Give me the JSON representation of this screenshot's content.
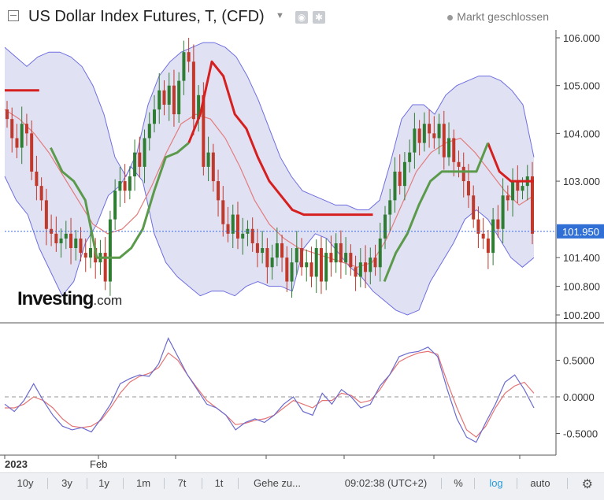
{
  "header": {
    "title": "US Dollar Index Futures, T, (CFD)",
    "market_status": "Markt geschlossen",
    "logo_main": "Investing",
    "logo_suffix": ".com"
  },
  "colors": {
    "bull": "#2f7d32",
    "bear": "#c0392b",
    "band_fill": "#dcdcf2",
    "band_line": "#6e6ee0",
    "supertrend_bear": "#d61f1f",
    "supertrend_bull": "#5a9a4a",
    "ma": "#e37d7d",
    "price_line": "#3a6fe0",
    "osc_fast": "#6a6acf",
    "osc_slow": "#e57373"
  },
  "toolbar": {
    "buttons": [
      "10y",
      "3y",
      "1y",
      "1m",
      "7t",
      "1t",
      "Gehe zu...",
      "09:02:38 (UTC+2)",
      "%",
      "log",
      "auto"
    ],
    "active": "log"
  },
  "chart_data": [
    {
      "type": "candlestick",
      "y_ticks": [
        "106.000",
        "105.000",
        "104.000",
        "103.000",
        "101.400",
        "100.800",
        "100.200"
      ],
      "ylim": [
        100.2,
        106.0
      ],
      "current_price": "101.950",
      "x_labels": [
        "2023",
        "Feb"
      ],
      "indicators": [
        "Bollinger Bands",
        "SuperTrend",
        "Moving Average"
      ],
      "close": [
        104.3,
        103.9,
        103.7,
        104.2,
        104.0,
        103.2,
        102.9,
        102.6,
        102.0,
        101.9,
        101.7,
        101.8,
        101.9,
        101.6,
        101.8,
        101.5,
        101.4,
        101.6,
        101.3,
        101.5,
        100.9,
        102.2,
        102.8,
        103.0,
        102.8,
        103.1,
        103.6,
        103.3,
        103.9,
        104.2,
        104.5,
        104.9,
        104.6,
        105.0,
        104.4,
        105.1,
        105.7,
        105.5,
        104.3,
        104.8,
        103.3,
        103.6,
        103.0,
        102.6,
        102.1,
        101.9,
        102.3,
        101.8,
        101.9,
        102.0,
        101.7,
        101.5,
        101.6,
        101.2,
        101.4,
        101.7,
        101.4,
        100.9,
        101.3,
        101.6,
        101.2,
        101.3,
        101.0,
        101.6,
        100.9,
        101.5,
        101.3,
        101.7,
        101.3,
        101.5,
        101.2,
        101.0,
        101.3,
        101.1,
        101.4,
        101.2,
        101.8,
        102.3,
        102.6,
        103.2,
        102.9,
        103.4,
        103.6,
        104.1,
        103.8,
        104.2,
        104.0,
        103.9,
        104.2,
        103.5,
        103.9,
        103.4,
        103.3,
        103.0,
        102.7,
        102.2,
        101.9,
        101.8,
        101.5,
        102.2,
        102.0,
        102.7,
        102.6,
        103.0,
        102.8,
        102.9,
        103.1,
        101.9
      ],
      "upper_band": [
        105.8,
        105.6,
        105.4,
        105.6,
        105.7,
        105.7,
        105.6,
        105.4,
        105.0,
        104.4,
        103.5,
        103.1,
        103.6,
        104.6,
        105.2,
        105.5,
        105.7,
        105.8,
        105.9,
        105.9,
        105.8,
        105.6,
        105.2,
        104.7,
        104.1,
        103.5,
        103.1,
        102.8,
        102.7,
        102.6,
        102.5,
        102.5,
        102.4,
        102.4,
        102.6,
        103.4,
        104.3,
        104.6,
        104.6,
        104.4,
        104.8,
        105.0,
        105.1,
        105.2,
        105.2,
        105.1,
        104.9,
        104.6,
        103.5
      ],
      "lower_band": [
        103.1,
        102.6,
        102.3,
        101.6,
        101.1,
        100.6,
        100.9,
        101.7,
        102.1,
        102.7,
        102.9,
        103.3,
        103.0,
        101.9,
        101.3,
        101.0,
        100.8,
        100.6,
        100.7,
        100.7,
        100.6,
        100.8,
        100.9,
        100.8,
        100.8,
        100.7,
        101.6,
        101.9,
        101.8,
        101.5,
        101.2,
        101.0,
        100.7,
        100.5,
        100.3,
        100.2,
        100.3,
        100.9,
        101.3,
        101.7,
        102.2,
        102.4,
        102.2,
        101.8,
        101.4,
        101.2,
        101.4
      ],
      "supertrend": [
        104.9,
        104.9,
        104.9,
        104.9,
        103.7,
        103.2,
        103.0,
        102.6,
        101.4,
        101.4,
        101.4,
        101.6,
        102.0,
        102.8,
        103.5,
        103.6,
        103.8,
        104.4,
        105.5,
        105.2,
        104.4,
        104.1,
        103.5,
        103.0,
        102.7,
        102.4,
        102.3,
        102.3,
        102.3,
        102.3,
        102.3,
        102.3,
        102.3,
        100.9,
        101.5,
        101.9,
        102.5,
        103.0,
        103.2,
        103.2,
        103.2,
        103.2,
        103.8,
        103.2,
        103.0,
        103.0,
        103.0
      ],
      "moving_average": [
        104.5,
        104.3,
        104.0,
        103.6,
        103.1,
        102.6,
        102.1,
        101.9,
        102.0,
        102.3,
        102.9,
        103.6,
        104.2,
        104.4,
        104.3,
        103.9,
        103.3,
        102.6,
        102.1,
        101.8,
        101.6,
        101.5,
        101.4,
        101.3,
        101.2,
        101.3,
        101.8,
        102.5,
        103.2,
        103.6,
        103.8,
        103.9,
        103.6,
        103.2,
        102.8,
        102.5,
        102.7
      ]
    },
    {
      "type": "line",
      "y_ticks": [
        "0.5000",
        "0.0000",
        "-0.5000"
      ],
      "ylim": [
        -0.78,
        0.85
      ],
      "zero_line": 0.0,
      "series_fast": [
        -0.1,
        -0.2,
        -0.05,
        0.18,
        -0.05,
        -0.25,
        -0.4,
        -0.45,
        -0.42,
        -0.48,
        -0.3,
        -0.1,
        0.18,
        0.25,
        0.3,
        0.28,
        0.45,
        0.8,
        0.55,
        0.3,
        0.1,
        -0.1,
        -0.15,
        -0.25,
        -0.45,
        -0.35,
        -0.3,
        -0.35,
        -0.25,
        -0.1,
        0.0,
        -0.2,
        -0.25,
        0.05,
        -0.1,
        0.1,
        0.0,
        -0.15,
        -0.1,
        0.15,
        0.3,
        0.55,
        0.6,
        0.62,
        0.68,
        0.55,
        0.1,
        -0.3,
        -0.55,
        -0.62,
        -0.35,
        -0.1,
        0.2,
        0.3,
        0.1,
        -0.15
      ],
      "series_slow": [
        -0.15,
        -0.15,
        -0.1,
        0.0,
        -0.05,
        -0.15,
        -0.3,
        -0.4,
        -0.42,
        -0.4,
        -0.32,
        -0.15,
        0.05,
        0.2,
        0.28,
        0.32,
        0.4,
        0.6,
        0.5,
        0.3,
        0.12,
        -0.05,
        -0.15,
        -0.25,
        -0.38,
        -0.36,
        -0.32,
        -0.3,
        -0.25,
        -0.15,
        -0.05,
        -0.1,
        -0.15,
        -0.05,
        -0.05,
        0.05,
        0.02,
        -0.08,
        -0.05,
        0.1,
        0.3,
        0.48,
        0.55,
        0.6,
        0.62,
        0.58,
        0.2,
        -0.15,
        -0.45,
        -0.55,
        -0.4,
        -0.15,
        0.05,
        0.15,
        0.2,
        0.05
      ]
    }
  ]
}
